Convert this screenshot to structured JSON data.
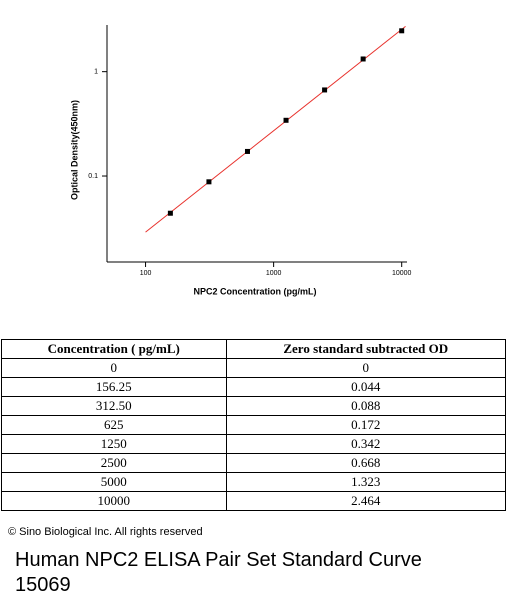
{
  "chart_data": {
    "type": "scatter",
    "xlabel": "NPC2 Concentration (pg/mL)",
    "ylabel": "Optical Density(450nm)",
    "x": [
      156.25,
      312.5,
      625,
      1250,
      2500,
      5000,
      10000
    ],
    "values": [
      0.044,
      0.088,
      0.172,
      0.342,
      0.668,
      1.323,
      2.464
    ],
    "color": "#000000",
    "fit_color": "#e8312c",
    "fit": true,
    "xscale": "log",
    "yscale": "log",
    "xlim": [
      50,
      11000
    ],
    "ylim": [
      0.015,
      2.8
    ],
    "xticks": [
      100,
      1000,
      10000
    ],
    "yticks": [
      0.1,
      1
    ]
  },
  "table": {
    "header": [
      "Concentration ( pg/mL)",
      "Zero standard subtracted OD"
    ],
    "rows": [
      [
        "0",
        "0"
      ],
      [
        "156.25",
        "0.044"
      ],
      [
        "312.50",
        "0.088"
      ],
      [
        "625",
        "0.172"
      ],
      [
        "1250",
        "0.342"
      ],
      [
        "2500",
        "0.668"
      ],
      [
        "5000",
        "1.323"
      ],
      [
        "10000",
        "2.464"
      ]
    ]
  },
  "copyright": "© Sino Biological Inc. All rights reserved",
  "caption": "Human NPC2 ELISA Pair Set Standard Curve 15069"
}
